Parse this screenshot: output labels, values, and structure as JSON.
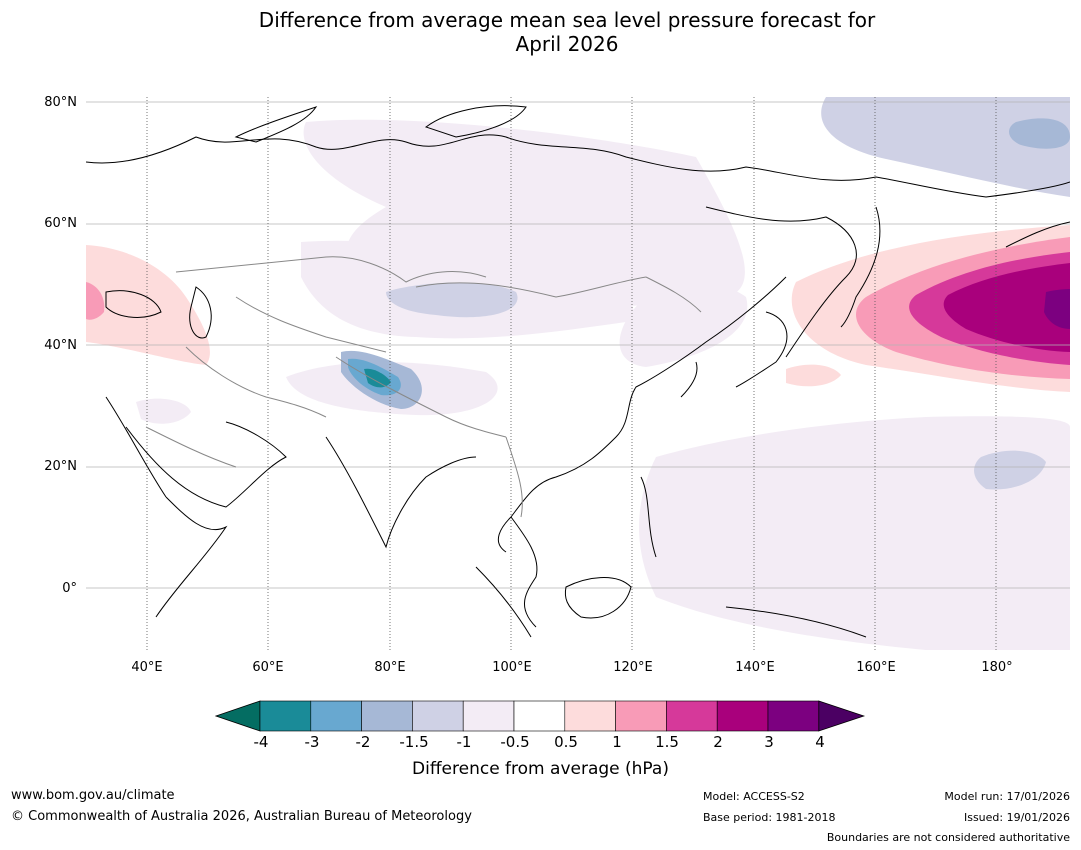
{
  "title": {
    "line1": "Difference from average mean sea level pressure forecast for",
    "line2": "April 2026"
  },
  "map": {
    "lat_labels": [
      "80°N",
      "60°N",
      "40°N",
      "20°N",
      "0°"
    ],
    "lon_labels": [
      "40°E",
      "60°E",
      "80°E",
      "100°E",
      "120°E",
      "140°E",
      "160°E",
      "180°"
    ],
    "lat_range": [
      -10,
      80
    ],
    "lon_range": [
      30,
      192
    ],
    "regions": [
      {
        "name": "north-pacific-high",
        "value": "+3 to +4 hPa"
      },
      {
        "name": "black-sea-high",
        "value": "+0.5 to +1 hPa"
      },
      {
        "name": "arctic-low",
        "value": "-1.5 to -2 hPa"
      },
      {
        "name": "himalaya-low",
        "value": "-3 to -4 hPa"
      },
      {
        "name": "western-pacific-low",
        "value": "-0.5 to -1.5 hPa"
      }
    ]
  },
  "colorbar": {
    "ticks": [
      "-4",
      "-3",
      "-2",
      "-1.5",
      "-1",
      "-0.5",
      "0.5",
      "1",
      "1.5",
      "2",
      "3",
      "4"
    ],
    "colors": [
      "#1a8b98",
      "#68a8d0",
      "#a6b8d6",
      "#cfd1e5",
      "#f3ecf5",
      "#ffffff",
      "#fddcdc",
      "#f89bb7",
      "#d6399a",
      "#a9007c",
      "#7c0080"
    ],
    "under_color": "#046d62",
    "over_color": "#4b0063",
    "label": "Difference from average (hPa)"
  },
  "footer": {
    "url": "www.bom.gov.au/climate",
    "copyright": "© Commonwealth of Australia 2026, Australian Bureau of Meteorology",
    "model": "Model: ACCESS-S2",
    "base_period": "Base period: 1981-2018",
    "model_run": "Model run: 17/01/2026",
    "issued": "Issued: 19/01/2026",
    "disclaimer": "Boundaries are not considered authoritative"
  }
}
